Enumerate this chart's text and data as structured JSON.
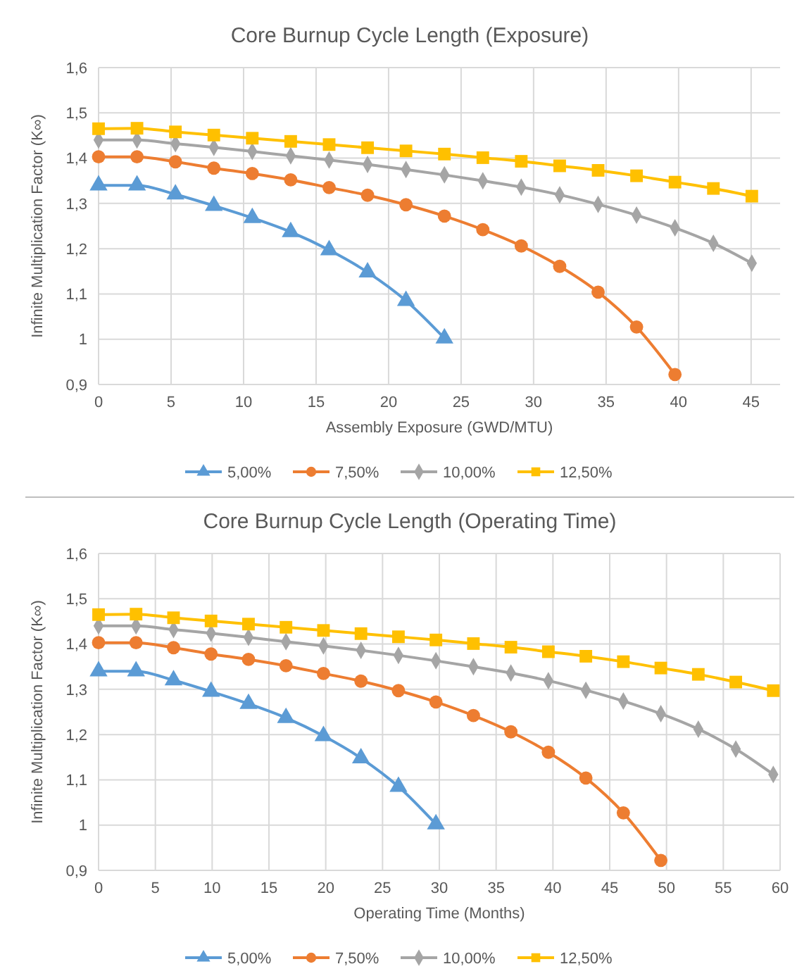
{
  "chart_data": [
    {
      "type": "line",
      "title": "Core Burnup Cycle Length (Exposure)",
      "xlabel": "Assembly Exposure (GWD/MTU)",
      "ylabel": "Infinite Multiplication Factor (K∞)",
      "xlim": [
        0,
        47
      ],
      "xticks": [
        0,
        5,
        10,
        15,
        20,
        25,
        30,
        35,
        40,
        45
      ],
      "ylim": [
        0.9,
        1.6
      ],
      "yticks": [
        {
          "value": 0.9,
          "label": "0,9"
        },
        1,
        {
          "value": 1.1,
          "label": "1,1"
        },
        {
          "value": 1.2,
          "label": "1,2"
        },
        {
          "value": 1.3,
          "label": "1,3"
        },
        {
          "value": 1.4,
          "label": "1,4"
        },
        {
          "value": 1.5,
          "label": "1,5"
        },
        {
          "value": 1.6,
          "label": "1,6"
        }
      ],
      "grid": true,
      "legend": "bottom",
      "x": [
        0,
        2.65,
        5.3,
        7.95,
        10.6,
        13.25,
        15.9,
        18.55,
        21.2,
        23.85,
        26.5,
        29.15,
        31.8,
        34.45,
        37.1,
        39.75,
        42.4,
        45.05
      ],
      "series": [
        {
          "name": "5,00%",
          "color": "#5b9bd5",
          "marker": "triangle",
          "values": [
            1.34,
            1.34,
            1.32,
            1.295,
            1.268,
            1.237,
            1.197,
            1.148,
            1.085,
            1.002,
            null,
            null,
            null,
            null,
            null,
            null,
            null,
            null
          ]
        },
        {
          "name": "7,50%",
          "color": "#ed7d31",
          "marker": "circle",
          "values": [
            1.403,
            1.403,
            1.392,
            1.378,
            1.366,
            1.352,
            1.335,
            1.318,
            1.297,
            1.272,
            1.242,
            1.206,
            1.161,
            1.104,
            1.027,
            0.922,
            null,
            null
          ]
        },
        {
          "name": "10,00%",
          "color": "#a5a5a5",
          "marker": "diamond",
          "values": [
            1.44,
            1.44,
            1.432,
            1.424,
            1.415,
            1.405,
            1.396,
            1.386,
            1.375,
            1.363,
            1.35,
            1.336,
            1.319,
            1.298,
            1.274,
            1.246,
            1.212,
            1.168
          ]
        },
        {
          "name": "12,50%",
          "color": "#ffc000",
          "marker": "square",
          "values": [
            1.465,
            1.466,
            1.458,
            1.451,
            1.444,
            1.437,
            1.43,
            1.423,
            1.416,
            1.409,
            1.401,
            1.393,
            1.383,
            1.373,
            1.361,
            1.347,
            1.333,
            1.316
          ]
        }
      ]
    },
    {
      "type": "line",
      "title": "Core Burnup Cycle Length (Operating Time)",
      "xlabel": "Operating Time (Months)",
      "ylabel": "Infinite Multiplication Factor (K∞)",
      "xlim": [
        0,
        60
      ],
      "xticks": [
        0,
        5,
        10,
        15,
        20,
        25,
        30,
        35,
        40,
        45,
        50,
        55,
        60
      ],
      "ylim": [
        0.9,
        1.6
      ],
      "yticks": [
        {
          "value": 0.9,
          "label": "0,9"
        },
        1,
        {
          "value": 1.1,
          "label": "1,1"
        },
        {
          "value": 1.2,
          "label": "1,2"
        },
        {
          "value": 1.3,
          "label": "1,3"
        },
        {
          "value": 1.4,
          "label": "1,4"
        },
        {
          "value": 1.5,
          "label": "1,5"
        },
        {
          "value": 1.6,
          "label": "1,6"
        }
      ],
      "grid": true,
      "legend": "bottom",
      "x": [
        0,
        3.3,
        6.6,
        9.9,
        13.2,
        16.5,
        19.8,
        23.1,
        26.4,
        29.7,
        33,
        36.3,
        39.6,
        42.9,
        46.2,
        49.5,
        52.8,
        56.1,
        59.4
      ],
      "series": [
        {
          "name": "5,00%",
          "color": "#5b9bd5",
          "marker": "triangle",
          "values": [
            1.34,
            1.34,
            1.32,
            1.295,
            1.268,
            1.237,
            1.197,
            1.148,
            1.085,
            1.002,
            null,
            null,
            null,
            null,
            null,
            null,
            null,
            null,
            null
          ]
        },
        {
          "name": "7,50%",
          "color": "#ed7d31",
          "marker": "circle",
          "values": [
            1.403,
            1.403,
            1.392,
            1.378,
            1.366,
            1.352,
            1.335,
            1.318,
            1.297,
            1.272,
            1.242,
            1.206,
            1.161,
            1.104,
            1.027,
            0.922,
            null,
            null,
            null
          ]
        },
        {
          "name": "10,00%",
          "color": "#a5a5a5",
          "marker": "diamond",
          "values": [
            1.44,
            1.44,
            1.432,
            1.424,
            1.415,
            1.405,
            1.396,
            1.386,
            1.375,
            1.363,
            1.35,
            1.336,
            1.319,
            1.298,
            1.274,
            1.246,
            1.212,
            1.168,
            1.112
          ]
        },
        {
          "name": "12,50%",
          "color": "#ffc000",
          "marker": "square",
          "values": [
            1.465,
            1.466,
            1.458,
            1.451,
            1.444,
            1.437,
            1.43,
            1.423,
            1.416,
            1.409,
            1.401,
            1.393,
            1.383,
            1.373,
            1.361,
            1.347,
            1.333,
            1.316,
            1.297
          ]
        }
      ]
    }
  ]
}
